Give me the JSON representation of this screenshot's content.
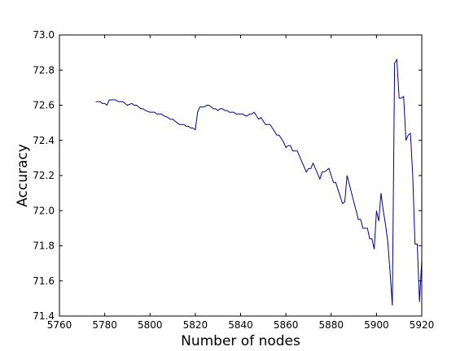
{
  "chart_data": {
    "type": "line",
    "title": "",
    "xlabel": "Number of nodes",
    "ylabel": "Accuracy",
    "xlim": [
      5760,
      5920
    ],
    "ylim": [
      71.4,
      73.0
    ],
    "xticks": [
      5760,
      5780,
      5800,
      5820,
      5840,
      5860,
      5880,
      5900,
      5920
    ],
    "yticks": [
      71.4,
      71.6,
      71.8,
      72.0,
      72.2,
      72.4,
      72.6,
      72.8,
      73.0
    ],
    "xtick_labels": [
      "5760",
      "5780",
      "5800",
      "5820",
      "5840",
      "5860",
      "5880",
      "5900",
      "5920"
    ],
    "ytick_labels": [
      "71.4",
      "71.6",
      "71.8",
      "72.0",
      "72.2",
      "72.4",
      "72.6",
      "72.8",
      "73.0"
    ],
    "grid": false,
    "line_color": "#00008b",
    "series": [
      {
        "x": [
          5776,
          5778,
          5779,
          5780,
          5781,
          5782,
          5784,
          5785,
          5786,
          5788,
          5789,
          5790,
          5792,
          5793,
          5794,
          5795,
          5796,
          5797,
          5798,
          5800,
          5802,
          5803,
          5804,
          5805,
          5806,
          5808,
          5809,
          5810,
          5811,
          5812,
          5813,
          5814,
          5815,
          5816,
          5817,
          5818,
          5819,
          5820,
          5821,
          5822,
          5823,
          5824,
          5825,
          5826,
          5827,
          5828,
          5829,
          5830,
          5831,
          5832,
          5833,
          5834,
          5835,
          5836,
          5837,
          5838,
          5839,
          5840,
          5841,
          5842,
          5843,
          5844,
          5845,
          5846,
          5847,
          5848,
          5849,
          5850,
          5851,
          5852,
          5853,
          5854,
          5855,
          5856,
          5857,
          5858,
          5859,
          5860,
          5861,
          5862,
          5863,
          5864,
          5865,
          5866,
          5867,
          5868,
          5869,
          5870,
          5871,
          5872,
          5873,
          5874,
          5875,
          5876,
          5877,
          5878,
          5879,
          5880,
          5881,
          5882,
          5883,
          5884,
          5885,
          5886,
          5887,
          5888,
          5889,
          5890,
          5891,
          5892,
          5893,
          5894,
          5895,
          5896,
          5897,
          5898,
          5899,
          5900,
          5901,
          5902,
          5903,
          5904,
          5905,
          5906,
          5907,
          5908,
          5909,
          5910,
          5911,
          5912,
          5913,
          5914,
          5915,
          5916,
          5917,
          5918,
          5919,
          5920
        ],
        "y": [
          72.62,
          72.62,
          72.61,
          72.61,
          72.6,
          72.63,
          72.63,
          72.63,
          72.62,
          72.62,
          72.61,
          72.6,
          72.61,
          72.6,
          72.6,
          72.59,
          72.58,
          72.58,
          72.57,
          72.56,
          72.56,
          72.55,
          72.55,
          72.55,
          72.54,
          72.53,
          72.52,
          72.52,
          72.51,
          72.5,
          72.49,
          72.49,
          72.49,
          72.48,
          72.48,
          72.47,
          72.47,
          72.46,
          72.56,
          72.59,
          72.59,
          72.59,
          72.6,
          72.6,
          72.59,
          72.58,
          72.58,
          72.57,
          72.58,
          72.58,
          72.57,
          72.57,
          72.56,
          72.56,
          72.56,
          72.55,
          72.55,
          72.55,
          72.55,
          72.54,
          72.54,
          72.55,
          72.55,
          72.56,
          72.54,
          72.52,
          72.53,
          72.51,
          72.49,
          72.49,
          72.49,
          72.47,
          72.45,
          72.43,
          72.43,
          72.41,
          72.39,
          72.36,
          72.37,
          72.37,
          72.34,
          72.34,
          72.34,
          72.31,
          72.28,
          72.25,
          72.22,
          72.24,
          72.24,
          72.27,
          72.24,
          72.21,
          72.18,
          72.22,
          72.22,
          72.23,
          72.24,
          72.2,
          72.16,
          72.16,
          72.12,
          72.08,
          72.04,
          72.05,
          72.2,
          72.15,
          72.1,
          72.05,
          72.0,
          71.95,
          71.95,
          71.9,
          71.9,
          71.9,
          71.84,
          71.84,
          71.78,
          72.0,
          71.94,
          72.1,
          72.0,
          71.92,
          71.82,
          71.65,
          71.46,
          72.84,
          72.86,
          72.64,
          72.64,
          72.65,
          72.4,
          72.43,
          72.44,
          72.2,
          71.81,
          71.81,
          71.48,
          71.72
        ]
      }
    ]
  }
}
